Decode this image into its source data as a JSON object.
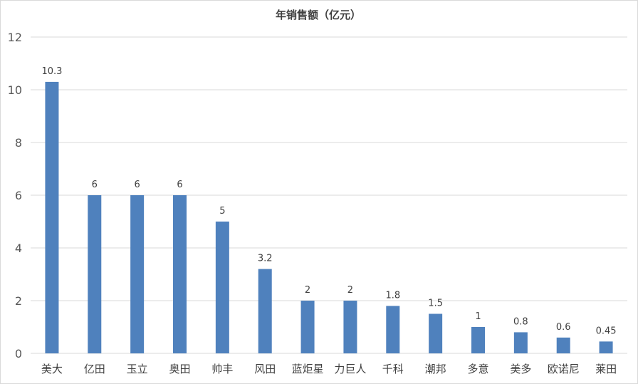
{
  "chart_data": {
    "type": "bar",
    "title": "年销售额（亿元）",
    "categories": [
      "美大",
      "亿田",
      "玉立",
      "奥田",
      "帅丰",
      "风田",
      "蓝炬星",
      "力巨人",
      "千科",
      "潮邦",
      "多意",
      "美多",
      "欧诺尼",
      "莱田"
    ],
    "values": [
      10.3,
      6,
      6,
      6,
      5,
      3.2,
      2,
      2,
      1.8,
      1.5,
      1,
      0.8,
      0.6,
      0.45
    ],
    "value_labels": [
      "10.3",
      "6",
      "6",
      "6",
      "5",
      "3.2",
      "2",
      "2",
      "1.8",
      "1.5",
      "1",
      "0.8",
      "0.6",
      "0.45"
    ],
    "yticks": [
      "0",
      "2",
      "4",
      "6",
      "8",
      "10",
      "12"
    ],
    "ylim": [
      0,
      12
    ],
    "xlabel": "",
    "ylabel": "",
    "grid": true,
    "legend": "none",
    "bar_color": "#4f81bd",
    "grid_color": "#d9d9d9"
  }
}
